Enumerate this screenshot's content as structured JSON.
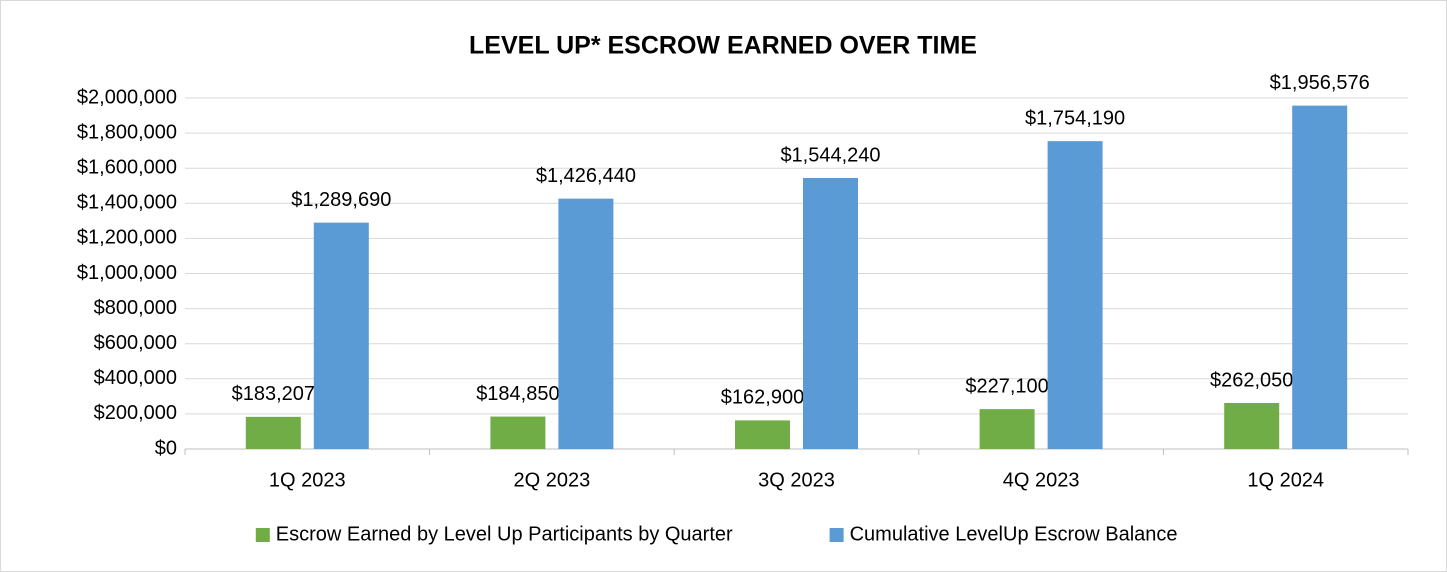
{
  "chart_data": {
    "type": "bar",
    "title": "LEVEL UP* ESCROW EARNED OVER TIME",
    "categories": [
      "1Q 2023",
      "2Q 2023",
      "3Q 2023",
      "4Q 2023",
      "1Q 2024"
    ],
    "series": [
      {
        "name": "Escrow Earned by Level Up Participants by Quarter",
        "color": "#70ad47",
        "values": [
          183207,
          184850,
          162900,
          227100,
          262050
        ],
        "value_labels": [
          "$183,207",
          "$184,850",
          "$162,900",
          "$227,100",
          "$262,050"
        ]
      },
      {
        "name": "Cumulative LevelUp Escrow Balance",
        "color": "#5b9bd5",
        "values": [
          1289690,
          1426440,
          1544240,
          1754190,
          1956576
        ],
        "value_labels": [
          "$1,289,690",
          "$1,426,440",
          "$1,544,240",
          "$1,754,190",
          "$1,956,576"
        ]
      }
    ],
    "ylim": [
      0,
      2000000
    ],
    "yticks": [
      {
        "value": 0,
        "label": "$0"
      },
      {
        "value": 200000,
        "label": "$200,000"
      },
      {
        "value": 400000,
        "label": "$400,000"
      },
      {
        "value": 600000,
        "label": "$600,000"
      },
      {
        "value": 800000,
        "label": "$800,000"
      },
      {
        "value": 1000000,
        "label": "$1,000,000"
      },
      {
        "value": 1200000,
        "label": "$1,200,000"
      },
      {
        "value": 1400000,
        "label": "$1,400,000"
      },
      {
        "value": 1600000,
        "label": "$1,600,000"
      },
      {
        "value": 1800000,
        "label": "$1,800,000"
      },
      {
        "value": 2000000,
        "label": "$2,000,000"
      }
    ],
    "grid": true,
    "legend": "bottom"
  }
}
